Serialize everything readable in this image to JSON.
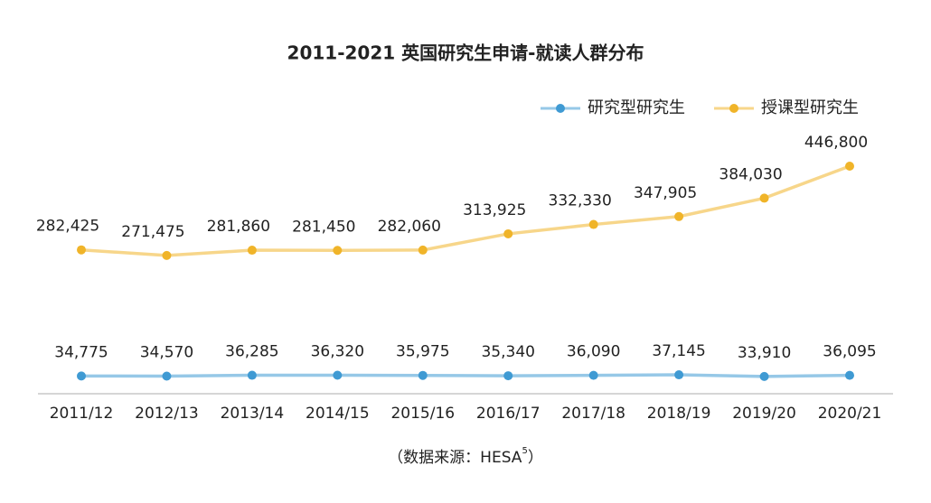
{
  "chart_data": {
    "type": "line",
    "title": "2011-2021 英国研究生申请-就读人群分布",
    "categories": [
      "2011/12",
      "2012/13",
      "2013/14",
      "2014/15",
      "2015/16",
      "2016/17",
      "2017/18",
      "2018/19",
      "2019/20",
      "2020/21"
    ],
    "series": [
      {
        "name": "研究型研究生",
        "color": "#3f9ad3",
        "values": [
          34775,
          34570,
          36285,
          36320,
          35975,
          35340,
          36090,
          37145,
          33910,
          36095
        ],
        "value_labels": [
          "34,775",
          "34,570",
          "36,285",
          "36,320",
          "35,975",
          "35,340",
          "36,090",
          "37,145",
          "33,910",
          "36,095"
        ]
      },
      {
        "name": "授课型研究生",
        "color": "#f0b429",
        "values": [
          282425,
          271475,
          281860,
          281450,
          282060,
          313925,
          332330,
          347905,
          384030,
          446800
        ],
        "value_labels": [
          "282,425",
          "271,475",
          "281,860",
          "281,450",
          "282,060",
          "313,925",
          "332,330",
          "347,905",
          "384,030",
          "446,800"
        ]
      }
    ],
    "source": "（数据来源：HESA",
    "source_note": "5",
    "source_end": "）"
  }
}
